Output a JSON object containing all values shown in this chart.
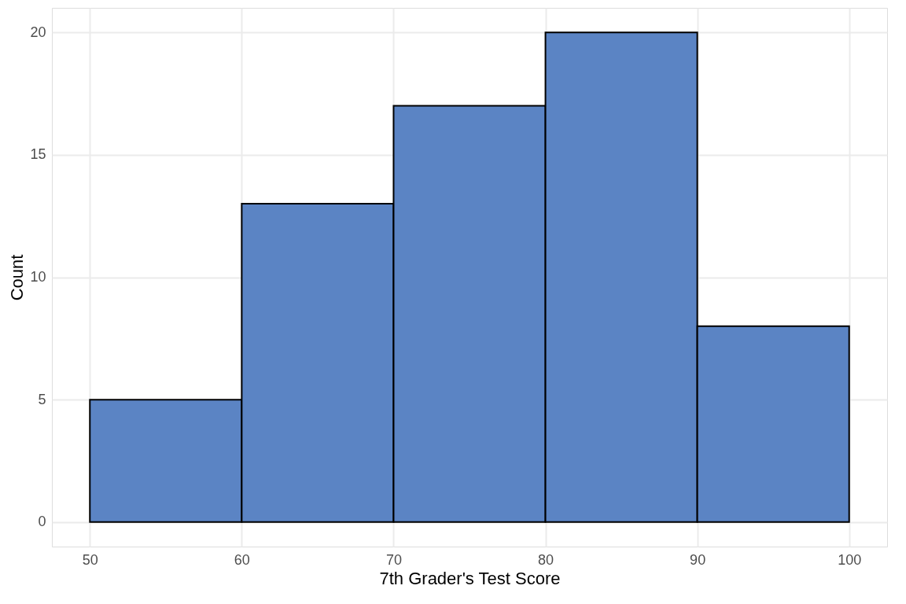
{
  "chart_data": {
    "type": "histogram",
    "xlabel": "7th Grader's Test Score",
    "ylabel": "Count",
    "bins": [
      50,
      60,
      70,
      80,
      90,
      100
    ],
    "values": [
      5,
      13,
      17,
      20,
      8
    ],
    "color": "#5b84c4",
    "xlim": [
      47.5,
      102.5
    ],
    "xticks": [
      50,
      60,
      70,
      80,
      90,
      100
    ],
    "ylim": [
      -1,
      21
    ],
    "yticks": [
      0,
      5,
      10,
      15,
      20
    ],
    "grid": true
  }
}
